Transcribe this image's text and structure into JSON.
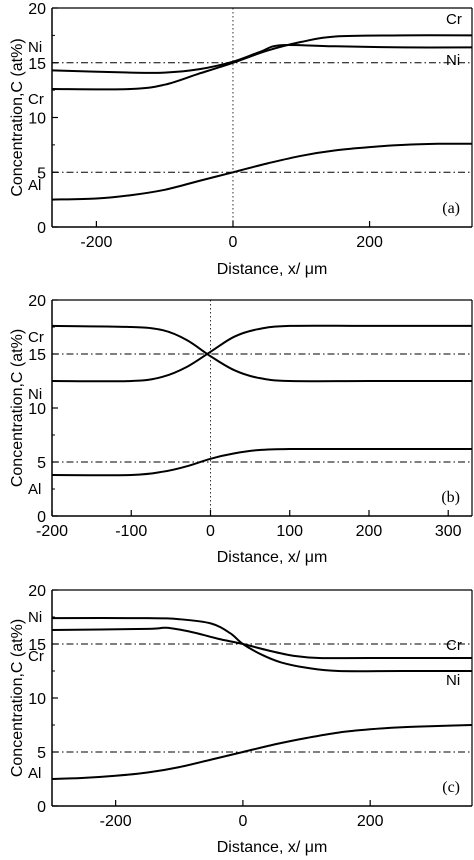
{
  "chart_data": [
    {
      "type": "line",
      "panel_label": "(a)",
      "xlabel": "Distance, x/ μm",
      "ylabel": "Concentration,C (at%)",
      "xlim": [
        -265,
        350
      ],
      "ylim": [
        0,
        20
      ],
      "xticks": [
        -200,
        0,
        200
      ],
      "yticks": [
        0,
        5,
        10,
        15,
        20
      ],
      "reference_lines": {
        "y": [
          5,
          15
        ],
        "x": [
          0
        ]
      },
      "series": [
        {
          "name": "Ni",
          "label_pos": "left",
          "x": [
            -265,
            -150,
            -100,
            -50,
            0,
            40,
            70,
            150,
            250,
            350
          ],
          "y": [
            14.3,
            14.1,
            14.1,
            14.4,
            15.1,
            16.0,
            16.6,
            16.5,
            16.4,
            16.4
          ]
        },
        {
          "name": "Cr",
          "label_pos": "both",
          "x": [
            -265,
            -150,
            -100,
            -50,
            0,
            50,
            100,
            150,
            250,
            350
          ],
          "y": [
            12.6,
            12.6,
            13.0,
            14.0,
            15.0,
            16.1,
            16.9,
            17.4,
            17.5,
            17.5
          ]
        },
        {
          "name": "Al",
          "label_pos": "left",
          "x": [
            -265,
            -200,
            -150,
            -100,
            -50,
            0,
            50,
            100,
            150,
            200,
            250,
            300,
            350
          ],
          "y": [
            2.5,
            2.6,
            2.9,
            3.4,
            4.2,
            5.0,
            5.8,
            6.5,
            7.0,
            7.3,
            7.5,
            7.6,
            7.6
          ]
        }
      ]
    },
    {
      "type": "line",
      "panel_label": "(b)",
      "xlabel": "Distance, x/ μm",
      "ylabel": "Concentration,C (at%)",
      "xlim": [
        -200,
        330
      ],
      "ylim": [
        0,
        20
      ],
      "xticks": [
        -200,
        -100,
        0,
        100,
        200,
        300
      ],
      "yticks": [
        0,
        5,
        10,
        15,
        20
      ],
      "reference_lines": {
        "y": [
          5,
          15
        ],
        "x": [
          0
        ]
      },
      "series": [
        {
          "name": "Cr",
          "label_pos": "left",
          "x": [
            -200,
            -100,
            -60,
            -30,
            0,
            30,
            60,
            100,
            200,
            330
          ],
          "y": [
            17.6,
            17.5,
            17.2,
            16.3,
            14.8,
            13.5,
            12.8,
            12.5,
            12.5,
            12.5
          ]
        },
        {
          "name": "Ni",
          "label_pos": "left",
          "x": [
            -200,
            -100,
            -60,
            -30,
            0,
            30,
            60,
            100,
            200,
            330
          ],
          "y": [
            12.5,
            12.5,
            12.9,
            13.8,
            15.2,
            16.6,
            17.3,
            17.6,
            17.6,
            17.6
          ]
        },
        {
          "name": "Al",
          "label_pos": "left",
          "x": [
            -200,
            -100,
            -60,
            -30,
            0,
            30,
            60,
            100,
            200,
            330
          ],
          "y": [
            3.8,
            3.8,
            4.1,
            4.6,
            5.3,
            5.8,
            6.1,
            6.2,
            6.2,
            6.2
          ]
        }
      ]
    },
    {
      "type": "line",
      "panel_label": "(c)",
      "xlabel": "Distance, x/ μm",
      "ylabel": "Concentration,C (at%)",
      "xlim": [
        -300,
        360
      ],
      "ylim": [
        0,
        20
      ],
      "xticks": [
        -200,
        0,
        200
      ],
      "yticks": [
        0,
        5,
        10,
        15,
        20
      ],
      "reference_lines": {
        "y": [
          5,
          15
        ]
      },
      "series": [
        {
          "name": "Ni",
          "label_pos": "both",
          "x": [
            -300,
            -150,
            -100,
            -50,
            -20,
            0,
            30,
            60,
            100,
            150,
            250,
            360
          ],
          "y": [
            17.4,
            17.4,
            17.3,
            16.9,
            16.0,
            15.0,
            14.0,
            13.3,
            12.8,
            12.5,
            12.5,
            12.5
          ]
        },
        {
          "name": "Cr",
          "label_pos": "both",
          "x": [
            -300,
            -150,
            -120,
            -80,
            -40,
            0,
            40,
            80,
            120,
            200,
            360
          ],
          "y": [
            16.3,
            16.4,
            16.5,
            16.1,
            15.5,
            15.0,
            14.4,
            13.9,
            13.7,
            13.7,
            13.7
          ]
        },
        {
          "name": "Al",
          "label_pos": "left",
          "x": [
            -300,
            -250,
            -200,
            -150,
            -100,
            -50,
            0,
            50,
            100,
            150,
            200,
            250,
            300,
            360
          ],
          "y": [
            2.5,
            2.6,
            2.8,
            3.1,
            3.6,
            4.3,
            5.0,
            5.7,
            6.3,
            6.8,
            7.1,
            7.3,
            7.4,
            7.5
          ]
        }
      ]
    }
  ]
}
